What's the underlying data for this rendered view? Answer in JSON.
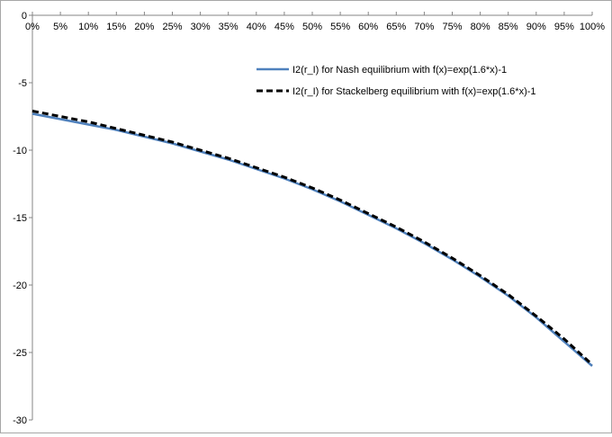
{
  "chart_data": {
    "type": "line",
    "title": "",
    "xlabel": "",
    "ylabel": "",
    "x": [
      "0%",
      "5%",
      "10%",
      "15%",
      "20%",
      "25%",
      "30%",
      "35%",
      "40%",
      "45%",
      "50%",
      "55%",
      "60%",
      "65%",
      "70%",
      "75%",
      "80%",
      "85%",
      "90%",
      "95%",
      "100%"
    ],
    "ylim": [
      -30,
      0
    ],
    "yticks": [
      0,
      -5,
      -10,
      -15,
      -20,
      -25,
      -30
    ],
    "x_axis_position": "top",
    "grid": false,
    "legend_position": "top-right",
    "series": [
      {
        "name": "I2(r_I) for Nash equilibrium with f(x)=exp(1.6*x)-1",
        "color": "#4f81bd",
        "style": "solid",
        "values": [
          -7.3,
          -7.7,
          -8.1,
          -8.5,
          -9.0,
          -9.5,
          -10.1,
          -10.7,
          -11.4,
          -12.1,
          -12.9,
          -13.8,
          -14.8,
          -15.8,
          -16.9,
          -18.1,
          -19.4,
          -20.8,
          -22.4,
          -24.2,
          -26.0
        ]
      },
      {
        "name": "I2(r_I) for Stackelberg equilibrium with f(x)=exp(1.6*x)-1",
        "color": "#000000",
        "style": "dashed",
        "values": [
          -7.1,
          -7.5,
          -7.9,
          -8.4,
          -8.9,
          -9.4,
          -10.0,
          -10.6,
          -11.3,
          -12.0,
          -12.8,
          -13.7,
          -14.7,
          -15.7,
          -16.8,
          -18.0,
          -19.3,
          -20.7,
          -22.3,
          -24.0,
          -25.9
        ]
      }
    ]
  }
}
